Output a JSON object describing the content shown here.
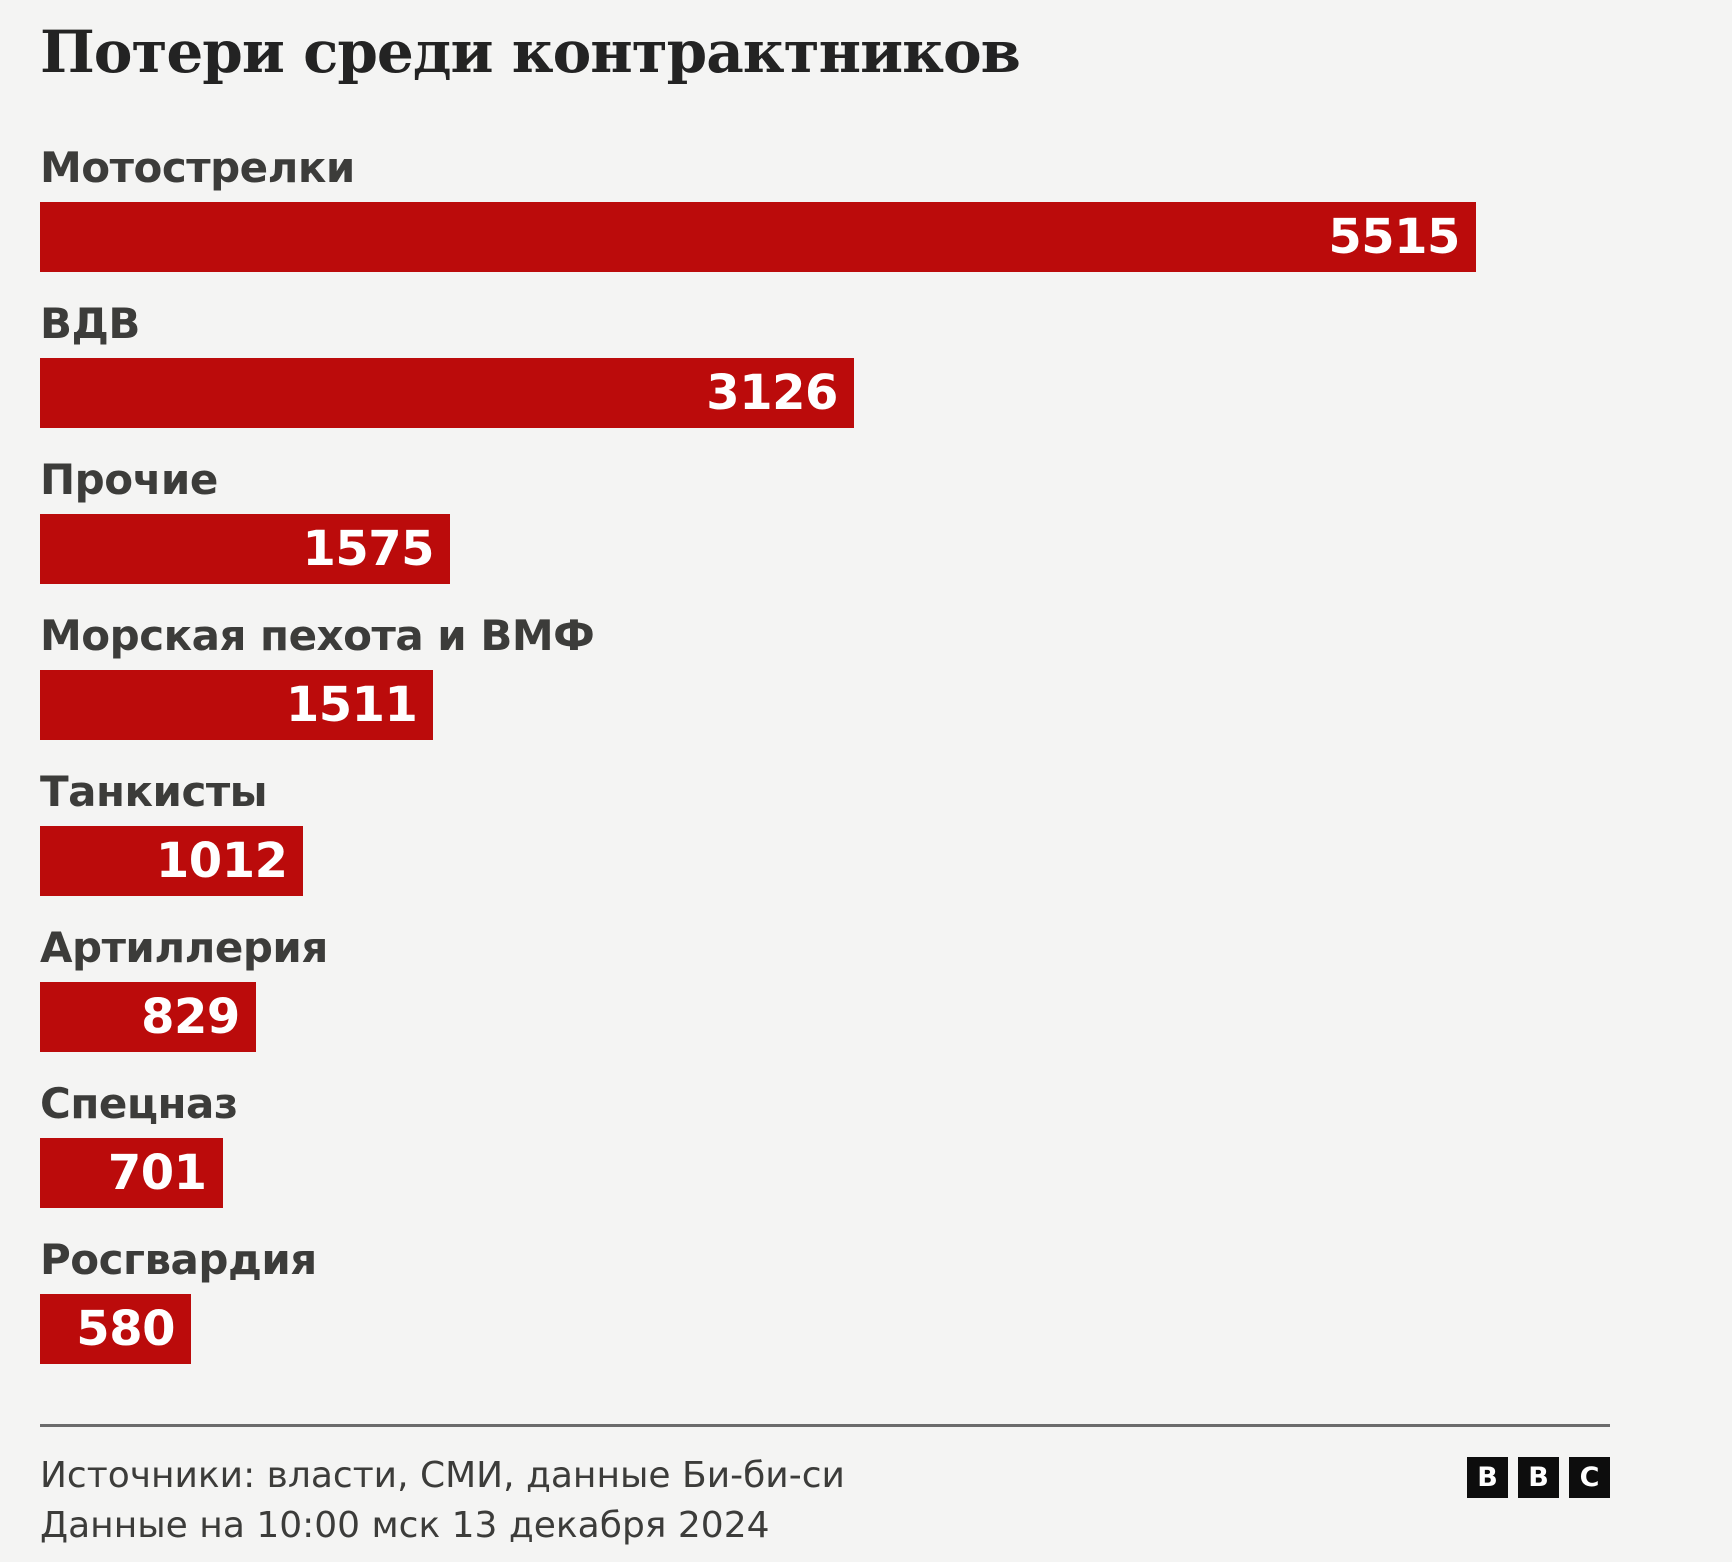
{
  "title": "Потери среди контрактников",
  "chart_data": {
    "type": "bar",
    "orientation": "horizontal",
    "title": "Потери среди контрактников",
    "categories": [
      "Мотострелки",
      "ВДВ",
      "Прочие",
      "Морская пехота и ВМФ",
      "Танкисты",
      "Артиллерия",
      "Спецназ",
      "Росгвардия"
    ],
    "values": [
      5515,
      3126,
      1575,
      1511,
      1012,
      829,
      701,
      580
    ],
    "xlabel": "",
    "ylabel": "",
    "xlim": [
      0,
      6030
    ],
    "grid": false,
    "legend": false,
    "value_labels": "inside-end",
    "bar_color": "#bb0b0b",
    "value_label_color": "#ffffff"
  },
  "footer": {
    "source_line": "Источники: власти, СМИ, данные Би-би-си",
    "data_line": "Данные на 10:00 мск 13 декабря 2024",
    "logo_letters": [
      "B",
      "B",
      "C"
    ]
  },
  "colors": {
    "background": "#f4f4f3",
    "bar": "#bb0b0b",
    "title_text": "#232323",
    "label_text": "#3c3c3a",
    "footer_text": "#3c3c3a",
    "separator": "#6b6b6b",
    "logo_bg": "#0d0d0d",
    "logo_text": "#ffffff"
  }
}
